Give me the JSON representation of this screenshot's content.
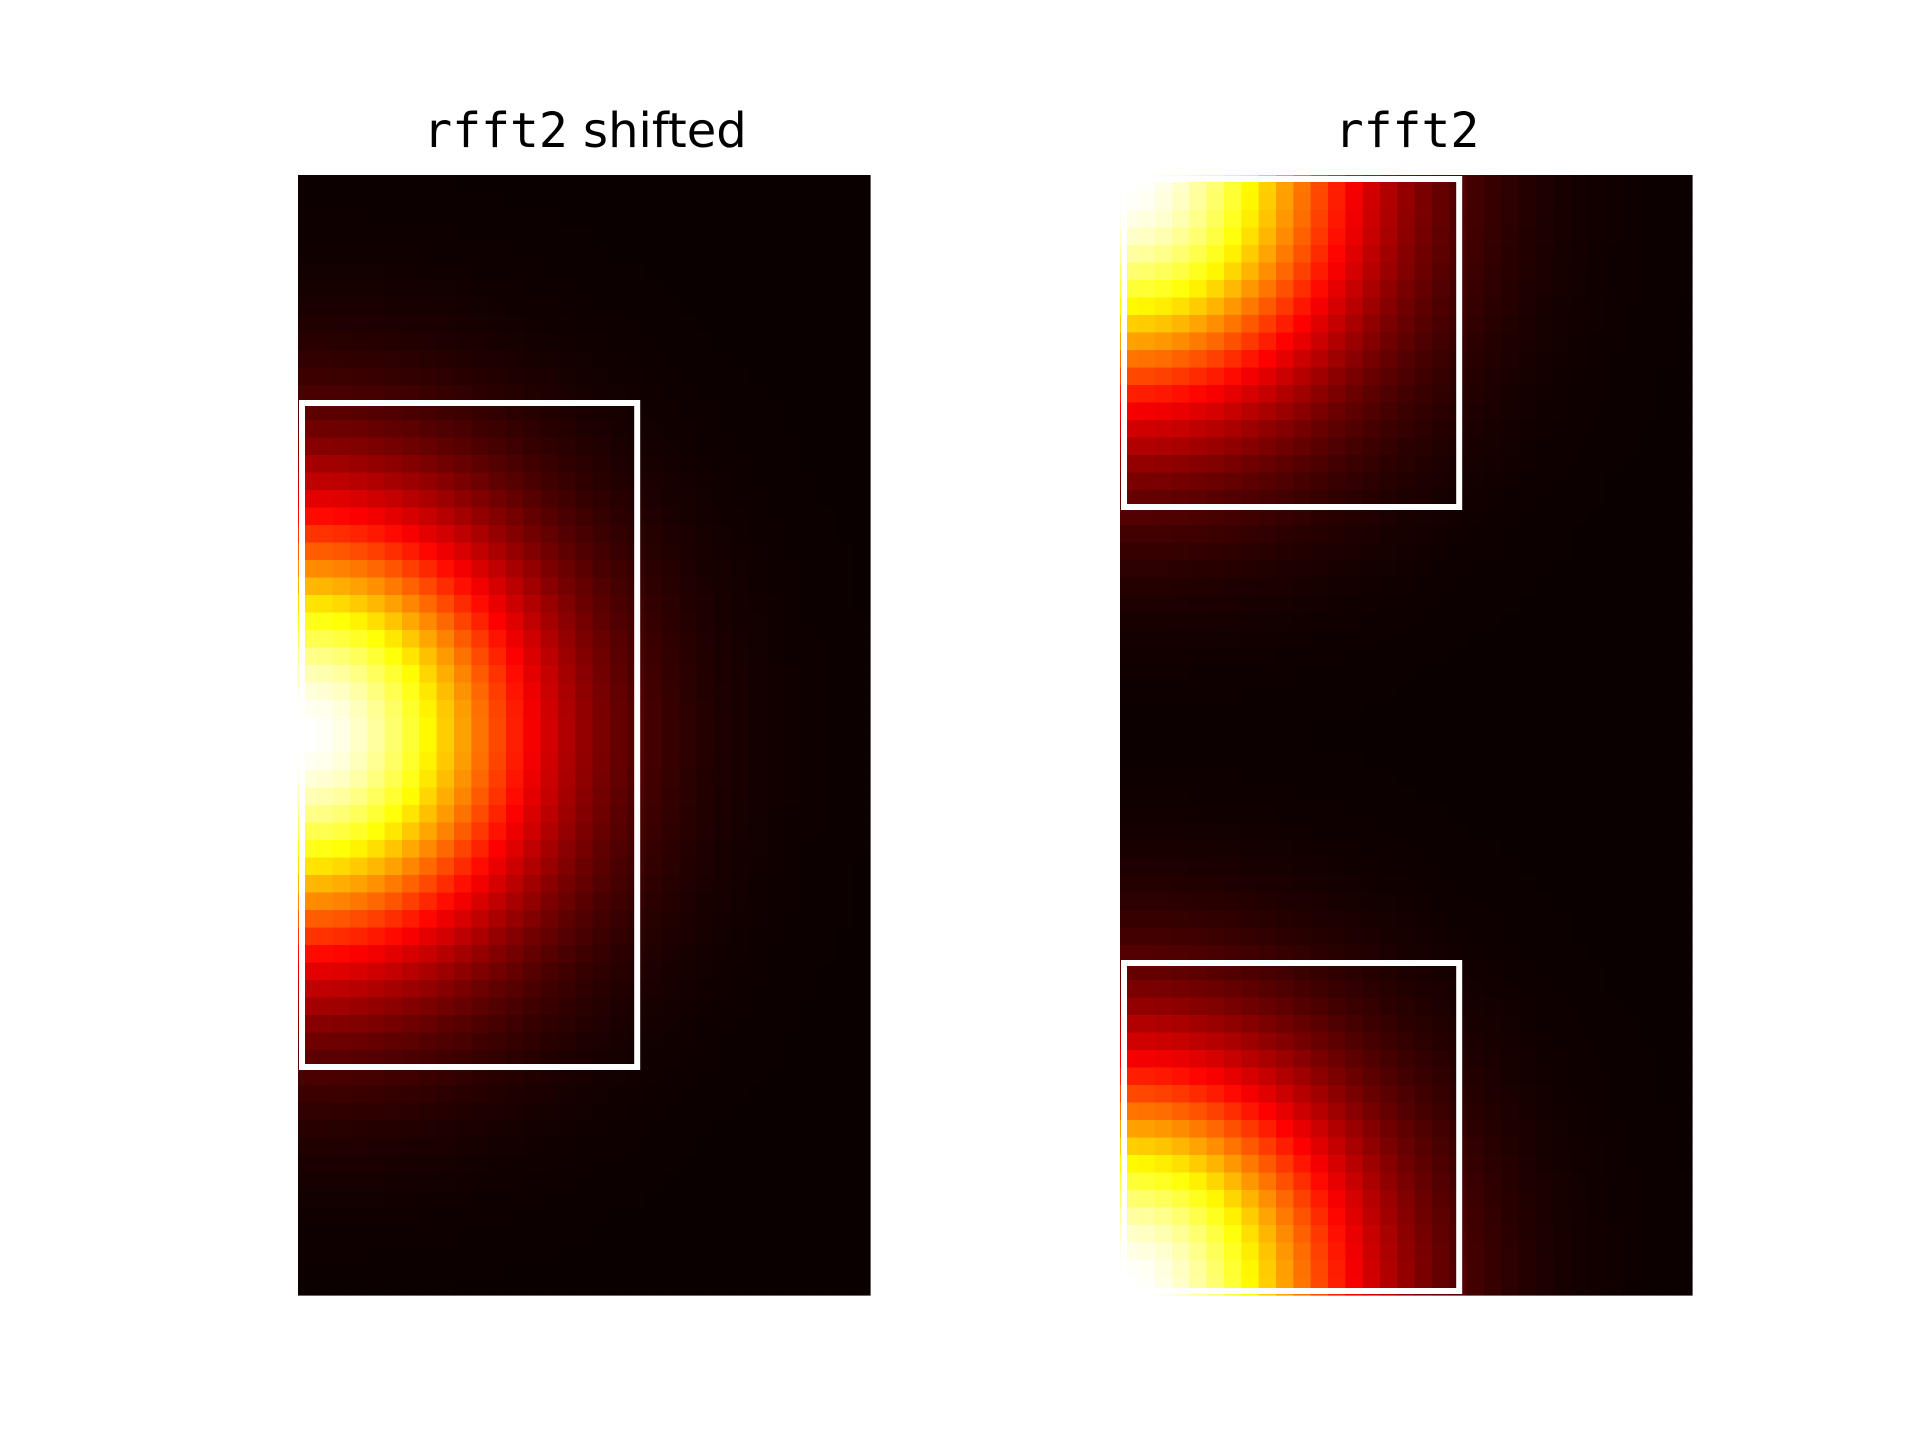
{
  "chart_data": [
    {
      "type": "heatmap",
      "title_code": "rfft2",
      "title_suffix": " shifted",
      "colormap": "hot",
      "grid": false,
      "axes_visible": false,
      "grid_rows": 64,
      "grid_cols": 33,
      "peak_row_fraction": 0.5,
      "peak_col_fraction": 0.0,
      "highlight_boxes": [
        {
          "row_start": 0.2,
          "row_end": 0.8,
          "col_start": 0.0,
          "col_end": 0.6,
          "color": "#ffffff"
        }
      ]
    },
    {
      "type": "heatmap",
      "title_code": "rfft2",
      "title_suffix": "",
      "colormap": "hot",
      "grid": false,
      "axes_visible": false,
      "grid_rows": 64,
      "grid_cols": 33,
      "peak_row_fraction": 0.0,
      "peak_col_fraction": 0.0,
      "highlight_boxes": [
        {
          "row_start": 0.0,
          "row_end": 0.3,
          "col_start": 0.0,
          "col_end": 0.6,
          "color": "#ffffff"
        },
        {
          "row_start": 0.7,
          "row_end": 1.0,
          "col_start": 0.0,
          "col_end": 0.6,
          "color": "#ffffff"
        }
      ]
    }
  ]
}
